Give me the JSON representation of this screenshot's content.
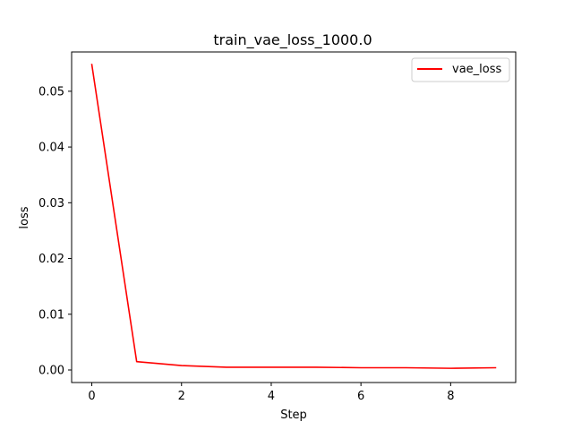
{
  "chart_data": {
    "type": "line",
    "title": "train_vae_loss_1000.0",
    "xlabel": "Step",
    "ylabel": "loss",
    "xlim": [
      -0.45,
      9.45
    ],
    "ylim": [
      -0.00225,
      0.05705
    ],
    "xticks": [
      0,
      2,
      4,
      6,
      8
    ],
    "xtick_labels": [
      "0",
      "2",
      "4",
      "6",
      "8"
    ],
    "yticks": [
      0.0,
      0.01,
      0.02,
      0.03,
      0.04,
      0.05
    ],
    "ytick_labels": [
      "0.00",
      "0.01",
      "0.02",
      "0.03",
      "0.04",
      "0.05"
    ],
    "grid": false,
    "legend_position": "top-right",
    "x": [
      0,
      1,
      2,
      3,
      4,
      5,
      6,
      7,
      8,
      9
    ],
    "series": [
      {
        "name": "vae_loss",
        "color": "#ff0000",
        "values": [
          0.0548,
          0.0015,
          0.0008,
          0.0005,
          0.0005,
          0.0005,
          0.0004,
          0.0004,
          0.0003,
          0.0004
        ]
      }
    ]
  }
}
